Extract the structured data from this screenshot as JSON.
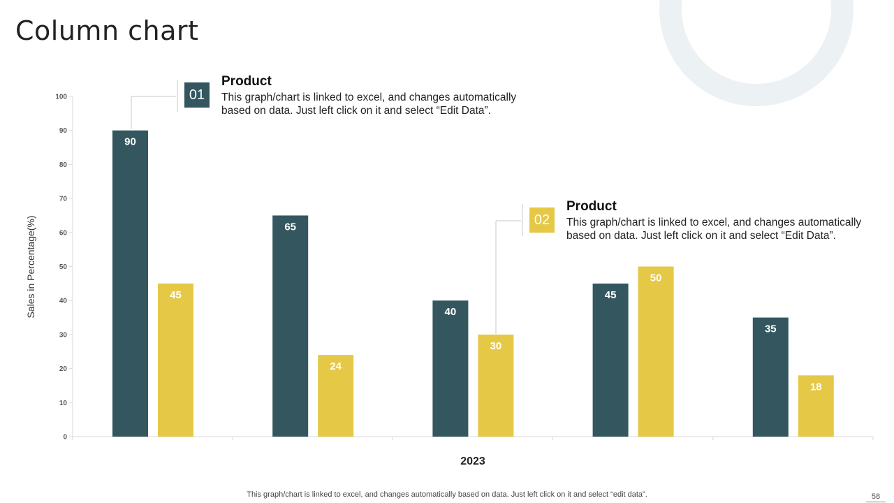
{
  "slide": {
    "title": "Column chart",
    "footer": "This graph/chart is linked to excel,  and changes automatically based on data. Just left click on it and select “edit data”.",
    "page_number": "58"
  },
  "callouts": [
    {
      "number": "01",
      "title": "Product",
      "description": "This graph/chart  is linked to excel, and changes automatically based on data. Just left click on it and select “Edit Data”.",
      "color": "#34575f"
    },
    {
      "number": "02",
      "title": "Product",
      "description": "This graph/chart  is linked to excel, and changes automatically based on data. Just left click on it and select “Edit Data”.",
      "color": "#e6c847"
    }
  ],
  "colors": {
    "series1": "#34575f",
    "series2": "#e6c847",
    "axis": "#d9d9d9",
    "tick_text": "#595959"
  },
  "chart_data": {
    "type": "bar",
    "title": "",
    "xlabel": "2023",
    "ylabel": "Sales in Percentage(%)",
    "ylim": [
      0,
      100
    ],
    "ytick_step": 10,
    "grid": false,
    "categories": [
      "",
      "",
      "",
      "",
      ""
    ],
    "series": [
      {
        "name": "Product 01",
        "values": [
          90,
          65,
          40,
          45,
          35
        ]
      },
      {
        "name": "Product 02",
        "values": [
          45,
          24,
          30,
          50,
          18
        ]
      }
    ]
  }
}
